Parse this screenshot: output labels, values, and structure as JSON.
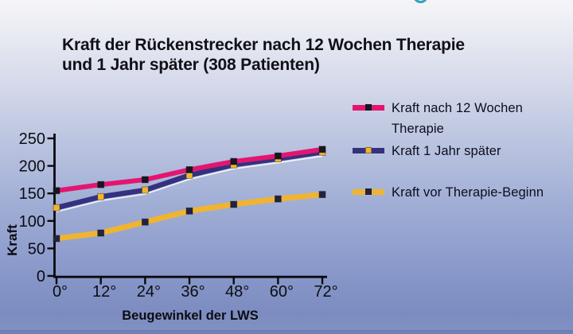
{
  "title": {
    "line1": "Kraft der Rückenstrecker nach 12 Wochen Therapie",
    "line2": "und 1 Jahr später (308 Patienten)"
  },
  "decoration": {
    "teal_arc_color": "#2fa3bd"
  },
  "axis": {
    "color": "#0a0a0f",
    "tick_label_color": "#0c0c12"
  },
  "chart_data": {
    "type": "line",
    "x": [
      0,
      12,
      24,
      36,
      48,
      60,
      72
    ],
    "x_tick_labels": [
      "0°",
      "12°",
      "24°",
      "36°",
      "48°",
      "60°",
      "72°"
    ],
    "xlabel": "Beugewinkel der LWS",
    "ylabel": "Kraft",
    "ylim": [
      0,
      250
    ],
    "y_ticks": [
      0,
      50,
      100,
      150,
      200,
      250
    ],
    "grid": false,
    "legend_position": "right",
    "series": [
      {
        "name": "Kraft nach 12 Wochen Therapie",
        "color": "#e41570",
        "marker_color": "#17171d",
        "values": [
          155,
          166,
          175,
          193,
          208,
          218,
          230
        ]
      },
      {
        "name": "Kraft 1 Jahr später",
        "color": "#34317e",
        "marker_color": "#f0b62e",
        "values": [
          124,
          144,
          156,
          183,
          202,
          213,
          225
        ]
      },
      {
        "name": "Kraft vor Therapie-Beginn",
        "color": "#f0b431",
        "marker_color": "#23233f",
        "values": [
          68,
          78,
          98,
          118,
          130,
          140,
          148
        ]
      }
    ]
  },
  "legend": {
    "items": [
      {
        "line1": "Kraft nach 12 Wochen",
        "line2": "Therapie"
      },
      {
        "line1": "Kraft 1 Jahr später",
        "line2": ""
      },
      {
        "line1": "Kraft vor Therapie-Beginn",
        "line2": ""
      }
    ]
  }
}
